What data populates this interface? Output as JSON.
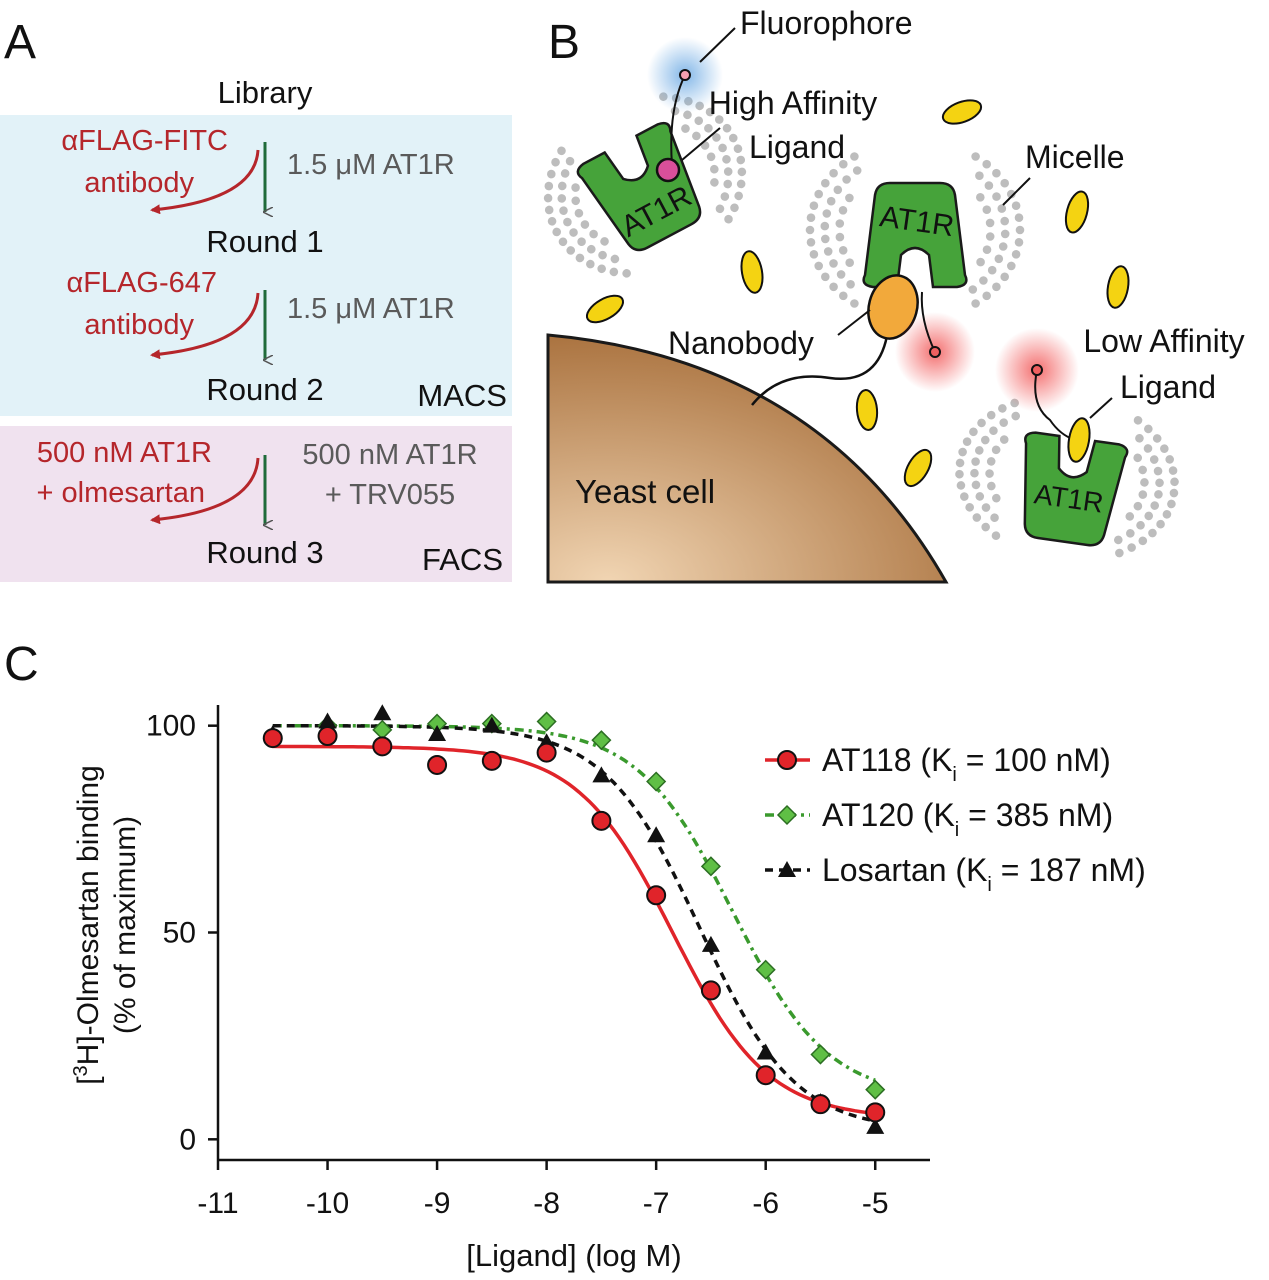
{
  "colors": {
    "red": "#b5262b",
    "green_arrow": "#1f6b3a",
    "grey_text": "#5a5a5a",
    "macs_bg": "#e2f2f8",
    "facs_bg": "#f0e2ef",
    "receptor_green": "#46a33a",
    "nanobody_orange": "#f2a93b",
    "ligand_yellow": "#f4d312",
    "micelle_grey": "#bdbdbd",
    "yeast_brown": "#a9733e",
    "series_at118": "#e0242a",
    "series_at120": "#3a9a2d",
    "series_losartan": "#111111"
  },
  "panelA": {
    "label": "A",
    "library": "Library",
    "macs_label": "MACS",
    "facs_label": "FACS",
    "steps": [
      {
        "neg_line1": "αFLAG-FITC",
        "neg_line2": "antibody",
        "pos_line1": "1.5 μM AT1R",
        "pos_line2": "",
        "round": "Round 1"
      },
      {
        "neg_line1": "αFLAG-647",
        "neg_line2": "antibody",
        "pos_line1": "1.5 μM AT1R",
        "pos_line2": "",
        "round": "Round 2"
      },
      {
        "neg_line1": "500 nM AT1R",
        "neg_line2": "+ olmesartan",
        "pos_line1": "500 nM AT1R",
        "pos_line2": "+ TRV055",
        "round": "Round 3"
      }
    ]
  },
  "panelB": {
    "label": "B",
    "fluorophore": "Fluorophore",
    "high_affinity_1": "High Affinity",
    "high_affinity_2": "Ligand",
    "micelle": "Micelle",
    "nanobody": "Nanobody",
    "low_affinity_1": "Low Affinity",
    "low_affinity_2": "Ligand",
    "yeast_cell": "Yeast cell",
    "receptor": "AT1R"
  },
  "panelC": {
    "label": "C"
  },
  "chart_data": {
    "type": "scatter",
    "ylabel_pre": "[",
    "ylabel_sup": "3",
    "ylabel_post": "H]-Olmesartan binding",
    "ylabel_line2": "(% of maximum)",
    "xlabel": "[Ligand] (log M)",
    "xlim": [
      -11,
      -4.5
    ],
    "ylim": [
      -5,
      105
    ],
    "xticks": [
      -11,
      -10,
      -9,
      -8,
      -7,
      -6,
      -5
    ],
    "yticks": [
      0,
      50,
      100
    ],
    "grid": false,
    "legend_position": "right",
    "series": [
      {
        "name": "AT118 (K",
        "name_sub": "i",
        "name_tail": " = 100 nM)",
        "marker": "circle",
        "line": "solid",
        "x": [
          -10.5,
          -10,
          -9.5,
          -9,
          -8.5,
          -8,
          -7.5,
          -7,
          -6.5,
          -6,
          -5.5,
          -5
        ],
        "y": [
          97,
          97.5,
          95,
          90.5,
          91.5,
          93.5,
          77,
          59,
          36,
          15.5,
          8.5,
          6.5
        ],
        "fit": {
          "top": 95,
          "bottom": 5,
          "logIC50": -6.85,
          "hill": 1
        }
      },
      {
        "name": "AT120 (K",
        "name_sub": "i",
        "name_tail": " = 385 nM)",
        "marker": "diamond",
        "line": "dashdot",
        "x": [
          -10.5,
          -10,
          -9.5,
          -9,
          -8.5,
          -8,
          -7.5,
          -7,
          -6.5,
          -6,
          -5.5,
          -5
        ],
        "y": [
          97,
          100,
          99,
          100.5,
          100.5,
          101,
          96.5,
          86.5,
          66,
          41,
          20.5,
          12
        ],
        "fit": {
          "top": 100,
          "bottom": 10,
          "logIC50": -6.3,
          "hill": 1
        }
      },
      {
        "name": "Losartan (K",
        "name_sub": "i",
        "name_tail": " = 187 nM)",
        "marker": "triangle",
        "line": "dashed",
        "x": [
          -10.5,
          -10,
          -9.5,
          -9,
          -8.5,
          -8,
          -7.5,
          -7,
          -6.5,
          -6,
          -5.5,
          -5
        ],
        "y": [
          98,
          101,
          103,
          98,
          100,
          96,
          88,
          73.5,
          47,
          21,
          9,
          3
        ],
        "fit": {
          "top": 100,
          "bottom": 2,
          "logIC50": -6.6,
          "hill": 1
        }
      }
    ]
  }
}
